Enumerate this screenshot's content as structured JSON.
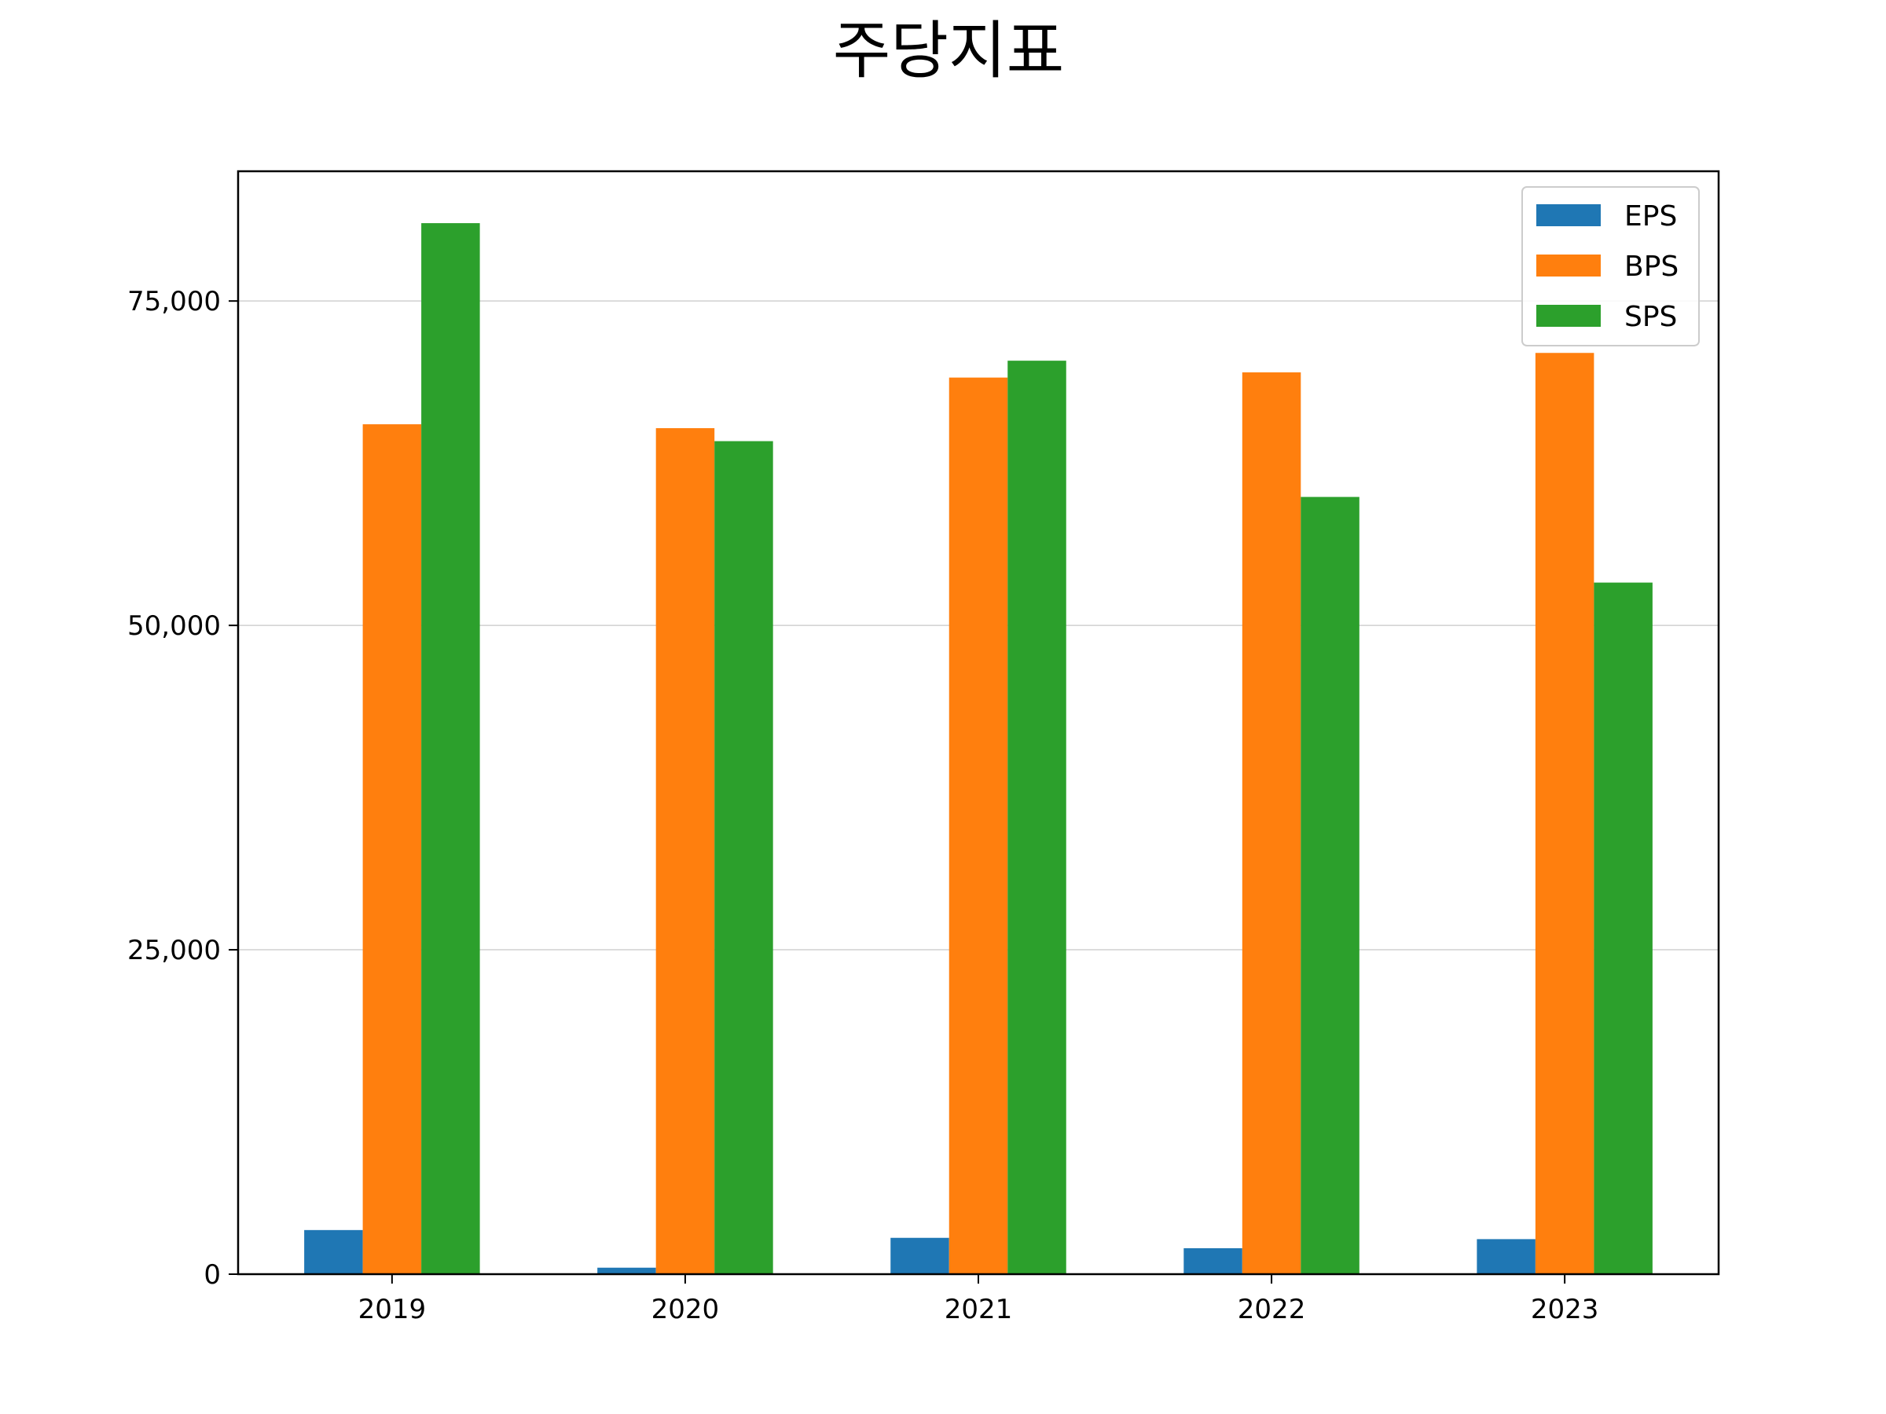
{
  "chart_data": {
    "type": "bar",
    "title": "주당지표",
    "xlabel": "",
    "ylabel": "",
    "categories": [
      "2019",
      "2020",
      "2021",
      "2022",
      "2023"
    ],
    "series": [
      {
        "name": "EPS",
        "color": "#1f77b4",
        "values": [
          3400,
          500,
          2800,
          2000,
          2700
        ]
      },
      {
        "name": "BPS",
        "color": "#ff7f0e",
        "values": [
          65500,
          65200,
          69100,
          69500,
          71000
        ]
      },
      {
        "name": "SPS",
        "color": "#2ca02c",
        "values": [
          81000,
          64200,
          70400,
          59900,
          53300
        ]
      }
    ],
    "ylim": [
      0,
      85000
    ],
    "yticks": [
      0,
      25000,
      50000,
      75000
    ],
    "ytick_labels": [
      "0",
      "25,000",
      "50,000",
      "75,000"
    ],
    "grid": "horizontal",
    "legend_position": "top-right"
  }
}
